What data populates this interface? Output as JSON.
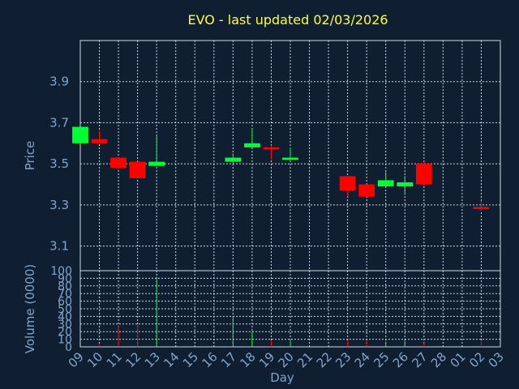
{
  "chart_data": {
    "type": "candlestick",
    "title": "EVO - last updated 02/03/2026",
    "xlabel": "Day",
    "ylabel": "Price",
    "volume_ylabel": "Volume (0000)",
    "ylim": [
      2.98,
      4.1
    ],
    "volume_ylim": [
      0,
      100
    ],
    "x_tick_labels": [
      "09",
      "10",
      "11",
      "12",
      "13",
      "14",
      "15",
      "16",
      "17",
      "18",
      "19",
      "20",
      "21",
      "22",
      "23",
      "24",
      "25",
      "26",
      "27",
      "28",
      "01",
      "02",
      "03"
    ],
    "y_ticks": [
      "3.1",
      "3.3",
      "3.5",
      "3.7",
      "3.9"
    ],
    "volume_ticks": [
      "0",
      "10",
      "20",
      "30",
      "40",
      "50",
      "60",
      "70",
      "80",
      "90",
      "100"
    ],
    "up_color": "#00ff33",
    "down_color": "#ff0000",
    "candles": [
      {
        "day": "09",
        "open": 3.6,
        "high": 3.68,
        "low": 3.6,
        "close": 3.68,
        "volume": 0
      },
      {
        "day": "10",
        "open": 3.62,
        "high": 3.66,
        "low": 3.6,
        "close": 3.6,
        "volume": 3
      },
      {
        "day": "11",
        "open": 3.53,
        "high": 3.53,
        "low": 3.47,
        "close": 3.48,
        "volume": 27
      },
      {
        "day": "12",
        "open": 3.51,
        "high": 3.51,
        "low": 3.43,
        "close": 3.43,
        "volume": 30
      },
      {
        "day": "13",
        "open": 3.49,
        "high": 3.64,
        "low": 3.49,
        "close": 3.51,
        "volume": 92
      },
      {
        "day": "17",
        "open": 3.51,
        "high": 3.55,
        "low": 3.5,
        "close": 3.53,
        "volume": 40
      },
      {
        "day": "18",
        "open": 3.58,
        "high": 3.67,
        "low": 3.58,
        "close": 3.6,
        "volume": 20
      },
      {
        "day": "19",
        "open": 3.58,
        "high": 3.59,
        "low": 3.52,
        "close": 3.57,
        "volume": 8
      },
      {
        "day": "20",
        "open": 3.52,
        "high": 3.58,
        "low": 3.52,
        "close": 3.53,
        "volume": 10
      },
      {
        "day": "23",
        "open": 3.44,
        "high": 3.44,
        "low": 3.34,
        "close": 3.37,
        "volume": 8
      },
      {
        "day": "24",
        "open": 3.4,
        "high": 3.4,
        "low": 3.34,
        "close": 3.34,
        "volume": 8
      },
      {
        "day": "25",
        "open": 3.39,
        "high": 3.46,
        "low": 3.39,
        "close": 3.42,
        "volume": 7
      },
      {
        "day": "26",
        "open": 3.39,
        "high": 3.44,
        "low": 3.35,
        "close": 3.41,
        "volume": 8
      },
      {
        "day": "27",
        "open": 3.5,
        "high": 3.51,
        "low": 3.39,
        "close": 3.4,
        "volume": 5
      },
      {
        "day": "02",
        "open": 3.29,
        "high": 3.32,
        "low": 3.27,
        "close": 3.28,
        "volume": 8
      }
    ]
  }
}
